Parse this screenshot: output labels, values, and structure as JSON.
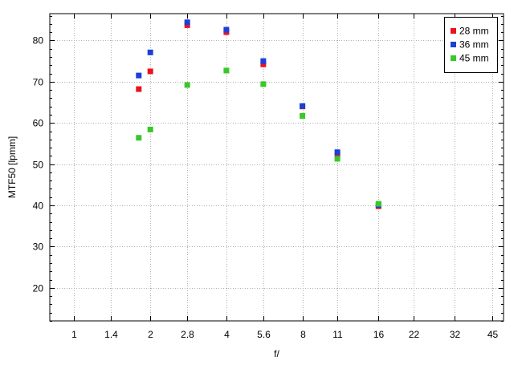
{
  "chart_data": {
    "type": "scatter",
    "title": "",
    "xlabel": "f/",
    "ylabel": "MTF50 [lpmm]",
    "x_scale": "log",
    "x_ticks": [
      1,
      1.4,
      2,
      2.8,
      4,
      5.6,
      8,
      11,
      16,
      22,
      32,
      45
    ],
    "x_tick_labels": [
      "1",
      "1.4",
      "2",
      "2.8",
      "4",
      "5.6",
      "8",
      "11",
      "16",
      "22",
      "32",
      "45"
    ],
    "xlim": [
      0.8,
      50
    ],
    "y_ticks": [
      20,
      30,
      40,
      50,
      60,
      70,
      80
    ],
    "y_tick_labels": [
      "20",
      "30",
      "40",
      "50",
      "60",
      "70",
      "80"
    ],
    "ylim": [
      12,
      86.5
    ],
    "grid": true,
    "legend_position": "top-right",
    "series": [
      {
        "name": "28 mm",
        "color": "#e8141c",
        "points": [
          [
            1.8,
            68.2
          ],
          [
            2,
            72.5
          ],
          [
            2.8,
            83.7
          ],
          [
            4,
            82
          ],
          [
            5.6,
            74.2
          ],
          [
            8,
            64
          ],
          [
            11,
            52.2
          ],
          [
            16,
            39.8
          ]
        ]
      },
      {
        "name": "36 mm",
        "color": "#1c3fd8",
        "points": [
          [
            1.8,
            71.5
          ],
          [
            2,
            77.1
          ],
          [
            2.8,
            84.4
          ],
          [
            4,
            82.6
          ],
          [
            5.6,
            75
          ],
          [
            8,
            64.1
          ],
          [
            11,
            52.9
          ],
          [
            16,
            40.1
          ]
        ]
      },
      {
        "name": "45 mm",
        "color": "#38c828",
        "points": [
          [
            1.8,
            56.4
          ],
          [
            2,
            58.4
          ],
          [
            2.8,
            69.2
          ],
          [
            4,
            72.7
          ],
          [
            5.6,
            69.4
          ],
          [
            8,
            61.7
          ],
          [
            11,
            51.3
          ],
          [
            16,
            40.4
          ]
        ]
      }
    ]
  }
}
